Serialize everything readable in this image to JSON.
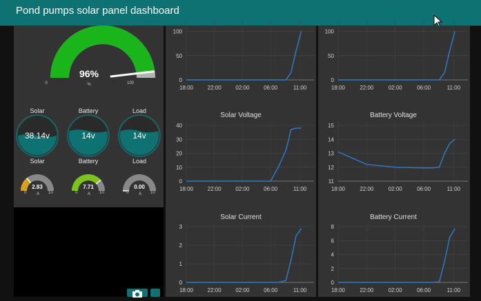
{
  "header": {
    "title": "Pond pumps solar panel dashboard"
  },
  "main_gauge": {
    "value_label": "96%",
    "fraction": 0.96,
    "min": "0",
    "max": "100",
    "unit": "%",
    "color": "#1ab51a"
  },
  "tanks": [
    {
      "label": "Solar",
      "value": "38.14v",
      "fill": 0.5
    },
    {
      "label": "Battery",
      "value": "14v",
      "fill": 0.62
    },
    {
      "label": "Load",
      "value": "14v",
      "fill": 0.62
    }
  ],
  "small_gauges": [
    {
      "label": "Solar",
      "value": "2.83",
      "fraction": 0.283,
      "min": "0",
      "max": "10",
      "unit": "A",
      "color": "#d6a21e"
    },
    {
      "label": "Battery",
      "value": "7.71",
      "fraction": 0.771,
      "min": "0",
      "max": "10",
      "unit": "A",
      "color": "#7ac51c"
    },
    {
      "label": "Load",
      "value": "0.00",
      "fraction": 0.0,
      "min": "0",
      "max": "10",
      "unit": "A",
      "color": "#888888"
    }
  ],
  "colors": {
    "header": "#0e7272",
    "panel": "#333333",
    "line": "#2a7cc7",
    "tank": "#0e7272"
  },
  "charts": [
    {
      "id": "c1",
      "title": "",
      "yticks": [
        "0",
        "50",
        "100"
      ],
      "ymin": 0,
      "ymax": 115,
      "xticks": [
        "18:00",
        "22:00",
        "02:00",
        "06:00",
        "11:00"
      ]
    },
    {
      "id": "c2",
      "title": "",
      "yticks": [
        "0",
        "50",
        "100"
      ],
      "ymin": 0,
      "ymax": 115,
      "xticks": [
        "18:00",
        "22:00",
        "02:00",
        "06:00",
        "11:00"
      ]
    },
    {
      "id": "c3",
      "title": "Solar Voltage",
      "yticks": [
        "0",
        "10",
        "20",
        "30",
        "40"
      ],
      "ymin": 0,
      "ymax": 40,
      "xticks": [
        "18:00",
        "22:00",
        "02:00",
        "06:00",
        "11:00"
      ]
    },
    {
      "id": "c4",
      "title": "Battery Voltage",
      "yticks": [
        "11",
        "12",
        "13",
        "14",
        "15"
      ],
      "ymin": 11,
      "ymax": 15,
      "xticks": [
        "18:00",
        "22:00",
        "02:00",
        "06:00",
        "11:00"
      ]
    },
    {
      "id": "c5",
      "title": "Solar Current",
      "yticks": [
        "0",
        "1",
        "2",
        "3"
      ],
      "ymin": 0,
      "ymax": 3,
      "xticks": [
        "18:00",
        "22:00",
        "02:00",
        "06:00",
        "11:00"
      ]
    },
    {
      "id": "c6",
      "title": "Battery Current",
      "yticks": [
        "0",
        "2",
        "4",
        "6",
        "8"
      ],
      "ymin": 0,
      "ymax": 8,
      "xticks": [
        "18:00",
        "22:00",
        "02:00",
        "06:00",
        "11:00"
      ]
    }
  ],
  "chart_data": [
    {
      "type": "line",
      "title": "",
      "x": [
        "18:00",
        "22:00",
        "02:00",
        "06:00",
        "07:00",
        "08:00",
        "09:00",
        "10:00",
        "11:00"
      ],
      "series": [
        {
          "values": [
            0,
            0,
            0,
            0,
            0,
            0,
            15,
            60,
            100
          ]
        }
      ],
      "ylim": [
        0,
        115
      ]
    },
    {
      "type": "line",
      "title": "",
      "x": [
        "18:00",
        "22:00",
        "02:00",
        "06:00",
        "07:00",
        "08:00",
        "09:00",
        "10:00",
        "11:00"
      ],
      "series": [
        {
          "values": [
            0,
            0,
            0,
            0,
            0,
            0,
            15,
            60,
            100
          ]
        }
      ],
      "ylim": [
        0,
        115
      ]
    },
    {
      "type": "line",
      "title": "Solar Voltage",
      "x": [
        "18:00",
        "22:00",
        "02:00",
        "06:00",
        "07:00",
        "08:00",
        "09:00",
        "10:00",
        "11:00"
      ],
      "series": [
        {
          "values": [
            0,
            0,
            0,
            0,
            10,
            22,
            37,
            38,
            38
          ]
        }
      ],
      "ylim": [
        0,
        40
      ]
    },
    {
      "type": "line",
      "title": "Battery Voltage",
      "x": [
        "18:00",
        "22:00",
        "02:00",
        "06:00",
        "07:00",
        "08:00",
        "09:00",
        "10:00",
        "11:00"
      ],
      "series": [
        {
          "values": [
            13.1,
            12.2,
            12.0,
            11.95,
            11.95,
            12.0,
            13.0,
            13.7,
            14.0
          ]
        }
      ],
      "ylim": [
        11,
        15
      ]
    },
    {
      "type": "line",
      "title": "Solar Current",
      "x": [
        "18:00",
        "22:00",
        "02:00",
        "06:00",
        "07:00",
        "08:00",
        "09:00",
        "10:00",
        "11:00"
      ],
      "series": [
        {
          "values": [
            0,
            0,
            0,
            0,
            0,
            0.1,
            1.2,
            2.5,
            2.9
          ]
        }
      ],
      "ylim": [
        0,
        3
      ]
    },
    {
      "type": "line",
      "title": "Battery Current",
      "x": [
        "18:00",
        "22:00",
        "02:00",
        "06:00",
        "07:00",
        "08:00",
        "09:00",
        "10:00",
        "11:00"
      ],
      "series": [
        {
          "values": [
            0,
            0,
            0,
            0,
            0,
            0.1,
            3,
            6.5,
            7.7
          ]
        }
      ],
      "ylim": [
        0,
        8
      ]
    }
  ]
}
